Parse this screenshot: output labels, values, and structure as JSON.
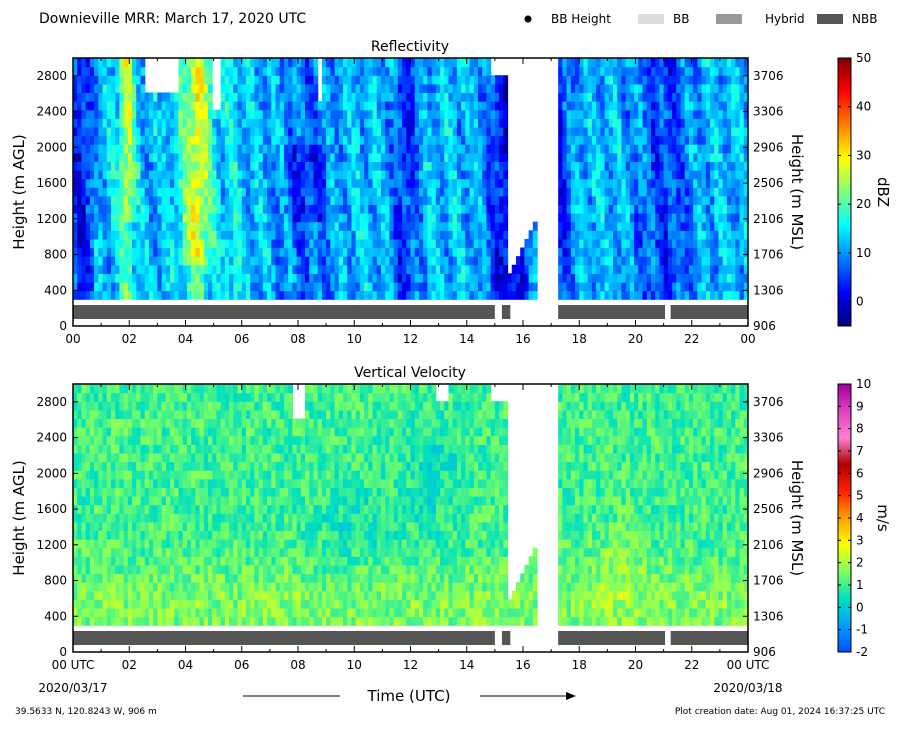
{
  "header": {
    "title": "Downieville MRR:  March 17, 2020 UTC",
    "legend": [
      {
        "label": "BB Height",
        "marker": "dot",
        "color": "#000000"
      },
      {
        "label": "BB",
        "marker": "box",
        "color": "#dcdcdc"
      },
      {
        "label": "Hybrid",
        "marker": "box",
        "color": "#999999"
      },
      {
        "label": "NBB",
        "marker": "box",
        "color": "#555555"
      }
    ]
  },
  "chart_data": [
    {
      "type": "heatmap",
      "title": "Reflectivity",
      "ylabel": "Height (m AGL)",
      "ylabel_right": "Height (m MSL)",
      "yticks": [
        "0",
        "400",
        "800",
        "1200",
        "1600",
        "2000",
        "2400",
        "2800"
      ],
      "yticks_right": [
        "906",
        "1306",
        "1706",
        "2106",
        "2506",
        "2906",
        "3306",
        "3706"
      ],
      "xticks": [
        "00",
        "02",
        "04",
        "06",
        "08",
        "10",
        "12",
        "14",
        "16",
        "18",
        "20",
        "22",
        "00"
      ],
      "xlim": [
        0,
        24
      ],
      "ylim": [
        0,
        3000
      ],
      "data_floor_m": 300,
      "colorbar": {
        "label": "dBZ",
        "range": [
          -5,
          50
        ],
        "ticks": [
          "0",
          "10",
          "20",
          "30",
          "40",
          "50"
        ],
        "colors": [
          "#00007f",
          "#0000ff",
          "#007fff",
          "#00ffff",
          "#7fff7f",
          "#ffff00",
          "#ff7f00",
          "#ff0000",
          "#7f0000"
        ]
      },
      "bright_band_bar": [
        {
          "start": 0.0,
          "end": 15.0,
          "class": "NBB"
        },
        {
          "start": 15.25,
          "end": 15.55,
          "class": "NBB"
        },
        {
          "start": 17.25,
          "end": 21.05,
          "class": "NBB"
        },
        {
          "start": 21.25,
          "end": 24.0,
          "class": "NBB"
        }
      ]
    },
    {
      "type": "heatmap",
      "title": "Vertical Velocity",
      "ylabel": "Height (m AGL)",
      "ylabel_right": "Height (m MSL)",
      "yticks": [
        "0",
        "400",
        "800",
        "1200",
        "1600",
        "2000",
        "2400",
        "2800"
      ],
      "yticks_right": [
        "906",
        "1306",
        "1706",
        "2106",
        "2506",
        "2906",
        "3306",
        "3706"
      ],
      "xticks": [
        "00 UTC",
        "02",
        "04",
        "06",
        "08",
        "10",
        "12",
        "14",
        "16",
        "18",
        "20",
        "22",
        "00 UTC"
      ],
      "xlim": [
        0,
        24
      ],
      "ylim": [
        0,
        3000
      ],
      "data_floor_m": 300,
      "colorbar": {
        "label": "m/s",
        "range": [
          -2,
          10
        ],
        "ticks": [
          "-2",
          "-1",
          "0",
          "1",
          "2",
          "3",
          "4",
          "5",
          "6",
          "7",
          "8",
          "9",
          "10"
        ],
        "colors": [
          "#0050ff",
          "#00a0ff",
          "#00e0c0",
          "#80ff60",
          "#ffff00",
          "#ffa000",
          "#ff2000",
          "#b00000",
          "#ff80d0",
          "#e040c0",
          "#a000a0"
        ]
      },
      "bright_band_bar": [
        {
          "start": 0.0,
          "end": 15.0,
          "class": "NBB"
        },
        {
          "start": 15.25,
          "end": 15.55,
          "class": "NBB"
        },
        {
          "start": 17.25,
          "end": 21.05,
          "class": "NBB"
        },
        {
          "start": 21.25,
          "end": 24.0,
          "class": "NBB"
        }
      ]
    }
  ],
  "footer": {
    "start_date": "2020/03/17",
    "end_date": "2020/03/18",
    "xlabel": "Time (UTC)",
    "location": "39.5633 N, 120.8243 W, 906 m",
    "creation": "Plot creation date: Aug 01, 2024 16:37:25 UTC"
  }
}
